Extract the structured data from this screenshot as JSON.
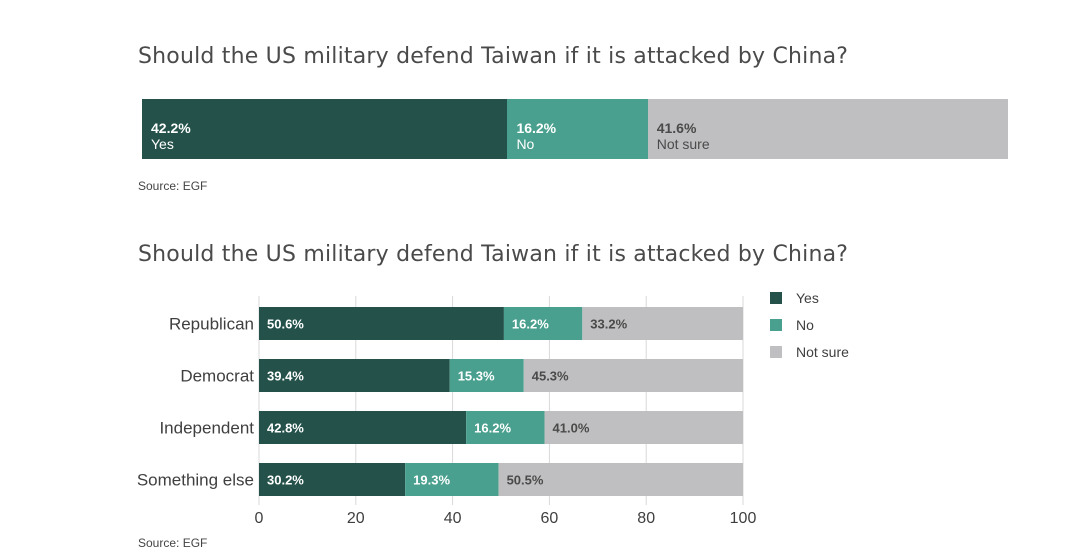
{
  "colors": {
    "yes": "#24524a",
    "no": "#4aa08e",
    "not_sure": "#bfbfc1",
    "grid": "#d9d9d9",
    "text": "#3f3f3f"
  },
  "chart_data": [
    {
      "type": "bar",
      "orientation": "horizontal-stacked",
      "title": "Should the US military defend Taiwan if it is attacked by China?",
      "source": "Source: EGF",
      "segments": [
        {
          "label": "Yes",
          "value": 42.2,
          "value_label": "42.2%"
        },
        {
          "label": "No",
          "value": 16.2,
          "value_label": "16.2%"
        },
        {
          "label": "Not sure",
          "value": 41.6,
          "value_label": "41.6%"
        }
      ]
    },
    {
      "type": "bar",
      "orientation": "horizontal-stacked",
      "title": "Should the US military defend Taiwan if it is attacked by China?",
      "source": "Source: EGF",
      "categories": [
        "Republican",
        "Democrat",
        "Independent",
        "Something else"
      ],
      "series": [
        {
          "name": "Yes",
          "values": [
            50.6,
            39.4,
            42.8,
            30.2
          ]
        },
        {
          "name": "No",
          "values": [
            16.2,
            15.3,
            16.2,
            19.3
          ]
        },
        {
          "name": "Not sure",
          "values": [
            33.2,
            45.3,
            41.0,
            50.5
          ]
        }
      ],
      "xlim": [
        0,
        100
      ],
      "xticks": [
        0,
        20,
        40,
        60,
        80,
        100
      ],
      "grid": true,
      "legend": "right"
    }
  ]
}
